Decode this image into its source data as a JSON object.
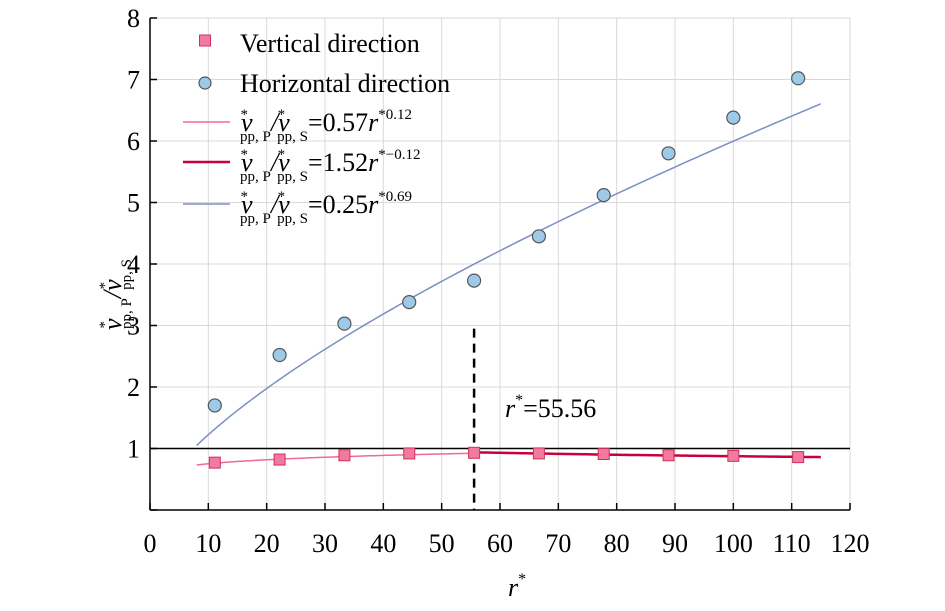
{
  "chart_data": {
    "type": "scatter",
    "xlabel": "r*",
    "ylabel": "v*pp, P/v*pp, S",
    "xlim": [
      0,
      120
    ],
    "ylim": [
      0,
      8
    ],
    "x_ticks": [
      "0",
      "10",
      "20",
      "30",
      "40",
      "50",
      "60",
      "70",
      "80",
      "90",
      "100",
      "110",
      "120"
    ],
    "y_ticks": [
      "0",
      "1",
      "2",
      "3",
      "4",
      "5",
      "6",
      "7",
      "8"
    ],
    "grid": true,
    "legend_position": "top-left",
    "series": [
      {
        "name": "Vertical direction",
        "kind": "points",
        "marker": "square",
        "color": "#f07aa0",
        "stroke": "#d0305f",
        "x": [
          11.11,
          22.22,
          33.33,
          44.44,
          55.56,
          66.67,
          77.78,
          88.89,
          100.0,
          111.11
        ],
        "y": [
          0.77,
          0.82,
          0.89,
          0.92,
          0.93,
          0.92,
          0.91,
          0.89,
          0.88,
          0.86
        ]
      },
      {
        "name": "Horizontal direction",
        "kind": "points",
        "marker": "circle",
        "color": "#9ecae9",
        "stroke": "#555555",
        "x": [
          11.11,
          22.22,
          33.33,
          44.44,
          55.56,
          66.67,
          77.78,
          88.89,
          100.0,
          111.11
        ],
        "y": [
          1.7,
          2.52,
          3.03,
          3.38,
          3.73,
          4.45,
          5.12,
          5.8,
          6.38,
          7.02
        ]
      },
      {
        "name": "v*pp, P/v*pp, S=0.57r*0.12",
        "legend": {
          "lhs": "v",
          "sub1": "pp, P",
          "mid": "/v",
          "sub2": "pp, S",
          "coef": "=0.57",
          "var": "r",
          "exp": "*0.12"
        },
        "kind": "fit",
        "color": "#f06a94",
        "width": 1.5,
        "coef": 0.57,
        "power": 0.12,
        "xrange": [
          8,
          55.56
        ]
      },
      {
        "name": "v*pp, P/v*pp, S=1.52r*−0.12",
        "legend": {
          "lhs": "v",
          "sub1": "pp, P",
          "mid": "/v",
          "sub2": "pp, S",
          "coef": "=1.52",
          "var": "r",
          "exp": "*−0.12"
        },
        "kind": "fit",
        "color": "#c8003c",
        "width": 2.5,
        "coef": 1.52,
        "power": -0.12,
        "xrange": [
          55.56,
          115
        ]
      },
      {
        "name": "v*pp, P/v*pp, S=0.25r*0.69",
        "legend": {
          "lhs": "v",
          "sub1": "pp, P",
          "mid": "/v",
          "sub2": "pp, S",
          "coef": "=0.25",
          "var": "r",
          "exp": "*0.69"
        },
        "kind": "fit",
        "color": "#7a8fc4",
        "width": 1.5,
        "coef": 0.25,
        "power": 0.69,
        "xrange": [
          8,
          115
        ]
      }
    ],
    "reference_line": {
      "y": 1
    },
    "annotation": {
      "x": 55.56,
      "y_top": 2.95,
      "text_var": "r",
      "text_sup": "*",
      "text_rest": "=55.56"
    }
  }
}
